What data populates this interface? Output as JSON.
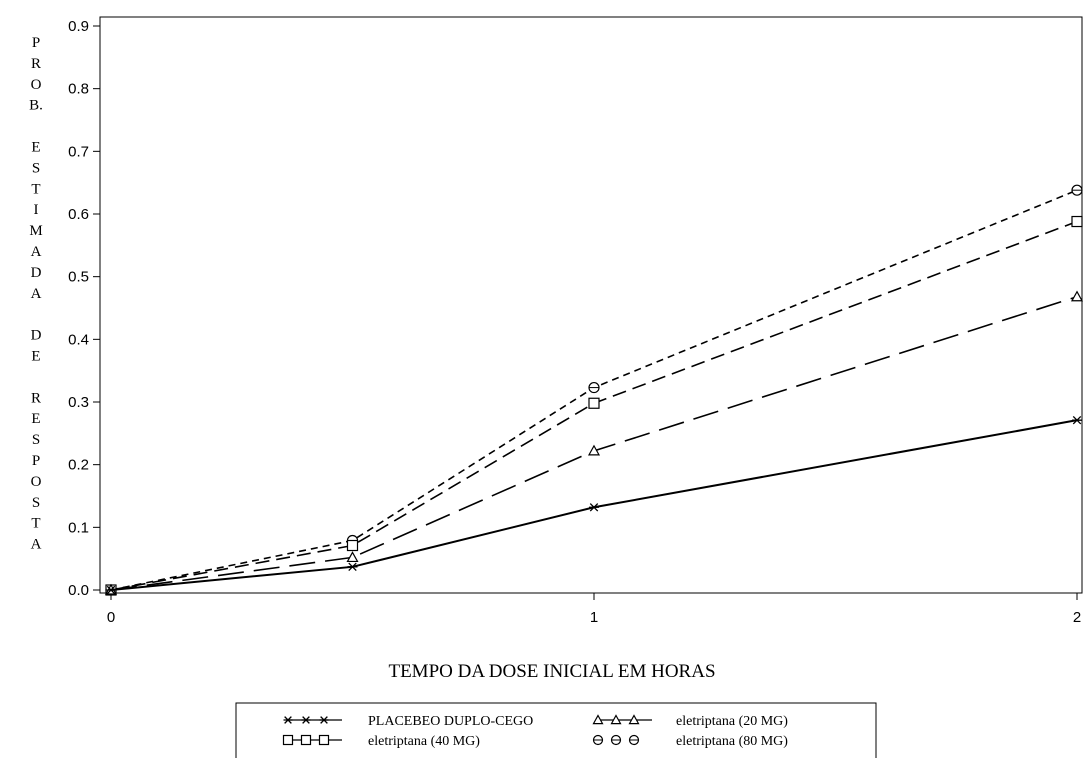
{
  "chart_data": {
    "type": "line",
    "title": "",
    "xlabel": "TEMPO DA DOSE INICIAL EM HORAS",
    "ylabel": "PROB. ESTIMADA DE RESPOSTA",
    "ylabel_lines": [
      "P",
      "R",
      "O",
      "B.",
      "",
      "E",
      "S",
      "T",
      "I",
      "M",
      "A",
      "D",
      "A",
      "",
      "D",
      "E",
      "",
      "R",
      "E",
      "S",
      "P",
      "O",
      "S",
      "T",
      "A"
    ],
    "xlim": [
      0,
      2
    ],
    "ylim": [
      0,
      0.9
    ],
    "x_ticks": [
      0,
      1,
      2
    ],
    "x_tick_labels": [
      "0",
      "1",
      "2"
    ],
    "y_ticks": [
      0,
      0.1,
      0.2,
      0.3,
      0.4,
      0.5,
      0.6,
      0.7,
      0.8,
      0.9
    ],
    "y_tick_labels": [
      "0.0",
      "0.1",
      "0.2",
      "0.3",
      "0.4",
      "0.5",
      "0.6",
      "0.7",
      "0.8",
      "0.9"
    ],
    "grid": false,
    "legend_position": "bottom",
    "x": [
      0,
      0.5,
      1,
      2
    ],
    "series": [
      {
        "name": "PLACEBEO DUPLO-CEGO",
        "marker": "star",
        "dash": "solid",
        "values": [
          0,
          0.037,
          0.132,
          0.271
        ]
      },
      {
        "name": "eletriptana (20 MG)",
        "marker": "triangle",
        "dash": "long-dash",
        "values": [
          0,
          0.052,
          0.222,
          0.468
        ]
      },
      {
        "name": "eletriptana (40 MG)",
        "marker": "square",
        "dash": "medium-dash",
        "values": [
          0,
          0.071,
          0.298,
          0.588
        ]
      },
      {
        "name": "eletriptana (80 MG)",
        "marker": "circle",
        "dash": "short-dash",
        "values": [
          0,
          0.079,
          0.323,
          0.638
        ]
      }
    ]
  }
}
